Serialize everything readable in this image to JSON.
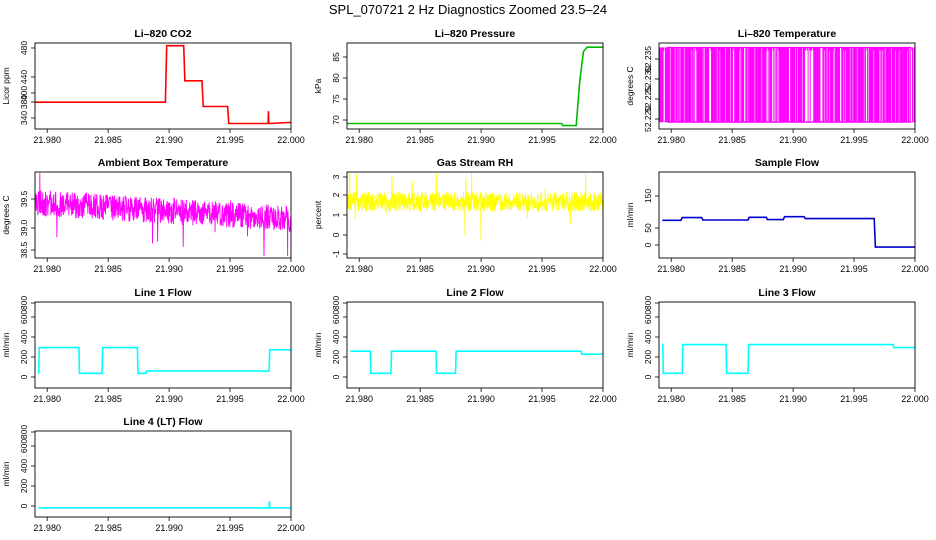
{
  "page": {
    "title": "SPL_070721  2 Hz Diagnostics Zoomed 23.5–24"
  },
  "chart_data": [
    {
      "type": "line",
      "title": "Li–820 CO2",
      "ylabel": "Licor ppm",
      "color": "#ff0000",
      "xlim": [
        21.979,
        22.0
      ],
      "ylim": [
        328,
        485
      ],
      "yticks": [
        "340",
        "380",
        "400",
        "440",
        "480"
      ],
      "xticks": [
        "21.980",
        "21.985",
        "21.990",
        "21.995",
        "22.000"
      ],
      "x": [
        21.979,
        21.9897,
        21.9898,
        21.9912,
        21.9913,
        21.9927,
        21.9928,
        21.9948,
        21.9949,
        21.99812,
        21.99815,
        21.99818,
        21.9982,
        22.0
      ],
      "y": [
        377,
        377,
        480,
        480,
        416,
        416,
        369,
        369,
        338,
        338,
        360,
        338,
        338,
        340
      ]
    },
    {
      "type": "line",
      "title": "Li–820 Pressure",
      "ylabel": "kPa",
      "color": "#00bb00",
      "xlim": [
        21.979,
        22.0
      ],
      "ylim": [
        68.5,
        89
      ],
      "yticks": [
        "70",
        "75",
        "80",
        "85"
      ],
      "xticks": [
        "21.980",
        "21.985",
        "21.990",
        "21.995",
        "22.000"
      ],
      "x": [
        21.979,
        21.9966,
        21.9967,
        21.9978,
        21.9981,
        21.9984,
        21.9987,
        22.0
      ],
      "y": [
        69.8,
        69.8,
        69.3,
        69.3,
        80,
        87,
        88,
        88
      ]
    },
    {
      "type": "line",
      "title": "Li–820 Temperature",
      "ylabel": "degrees C",
      "color": "#ff00ff",
      "xlim": [
        21.979,
        22.0
      ],
      "ylim": [
        52.218,
        52.247
      ],
      "yticks": [
        "52.220",
        "52.225",
        "52.230",
        "52.235"
      ],
      "xticks": [
        "21.980",
        "21.985",
        "21.990",
        "21.995",
        "22.000"
      ],
      "x": [
        21.979,
        22.0
      ],
      "y": [
        52.2203,
        52.2455
      ]
    },
    {
      "type": "line",
      "title": "Ambient Box Temperature",
      "ylabel": "degrees C",
      "color": "#ff00ff",
      "xlim": [
        21.979,
        22.0
      ],
      "ylim": [
        38.44,
        39.78
      ],
      "yticks": [
        "38.5",
        "39.0",
        "39.5"
      ],
      "xticks": [
        "21.980",
        "21.985",
        "21.990",
        "21.995",
        "22.000"
      ],
      "x": [
        21.979,
        22.0
      ],
      "y": [
        39.3,
        39.05
      ]
    },
    {
      "type": "line",
      "title": "Gas Stream RH",
      "ylabel": "percent",
      "color": "#ffff00",
      "xlim": [
        21.979,
        22.0
      ],
      "ylim": [
        -1.1,
        3.5
      ],
      "yticks": [
        "-1",
        "0",
        "1",
        "2",
        "3"
      ],
      "xticks": [
        "21.980",
        "21.985",
        "21.990",
        "21.995",
        "22.000"
      ],
      "x": [
        21.979,
        22.0
      ],
      "y": [
        1.9,
        1.9
      ]
    },
    {
      "type": "line",
      "title": "Sample Flow",
      "ylabel": "ml/min",
      "color": "#0000cc",
      "xlim": [
        21.979,
        22.0
      ],
      "ylim": [
        -30,
        230
      ],
      "yticks": [
        "0",
        "50",
        "150"
      ],
      "xticks": [
        "21.980",
        "21.985",
        "21.990",
        "21.995",
        "22.000"
      ],
      "x": [
        21.9793,
        21.9808,
        21.9809,
        21.9825,
        21.9826,
        21.9863,
        21.9864,
        21.9878,
        21.9879,
        21.9892,
        21.9893,
        21.9909,
        21.991,
        21.99665,
        21.99675,
        22.0
      ],
      "y": [
        84,
        84,
        92,
        92,
        85,
        85,
        93,
        93,
        86,
        86,
        95,
        95,
        89,
        89,
        3,
        3
      ]
    },
    {
      "type": "line",
      "title": "Line 1 Flow",
      "ylabel": "ml/min",
      "color": "#00ffff",
      "xlim": [
        21.979,
        22.0
      ],
      "ylim": [
        -120,
        1050
      ],
      "yticks": [
        "0",
        "200",
        "400",
        "600",
        "800"
      ],
      "xticks": [
        "21.980",
        "21.985",
        "21.990",
        "21.995",
        "22.000"
      ],
      "x": [
        21.9793,
        21.97935,
        21.9826,
        21.98265,
        21.9845,
        21.98455,
        21.9874,
        21.98745,
        21.98811,
        21.98815,
        21.9982,
        21.99825,
        22.0
      ],
      "y": [
        80,
        430,
        430,
        80,
        80,
        430,
        430,
        80,
        80,
        110,
        110,
        400,
        400
      ]
    },
    {
      "type": "line",
      "title": "Line 2 Flow",
      "ylabel": "ml/min",
      "color": "#00ffff",
      "xlim": [
        21.979,
        22.0
      ],
      "ylim": [
        -120,
        1050
      ],
      "yticks": [
        "0",
        "200",
        "400",
        "600",
        "800"
      ],
      "xticks": [
        "21.980",
        "21.985",
        "21.990",
        "21.995",
        "22.000"
      ],
      "x": [
        21.9793,
        21.9809,
        21.98095,
        21.9826,
        21.98265,
        21.9863,
        21.98635,
        21.9879,
        21.98795,
        21.9982,
        21.99825,
        22.0
      ],
      "y": [
        380,
        380,
        80,
        80,
        380,
        380,
        80,
        80,
        380,
        380,
        340,
        340
      ]
    },
    {
      "type": "line",
      "title": "Line 3 Flow",
      "ylabel": "ml/min",
      "color": "#00ffff",
      "xlim": [
        21.979,
        22.0
      ],
      "ylim": [
        -120,
        1050
      ],
      "yticks": [
        "0",
        "200",
        "400",
        "600",
        "800"
      ],
      "xticks": [
        "21.980",
        "21.985",
        "21.990",
        "21.995",
        "22.000"
      ],
      "x": [
        21.9793,
        21.97935,
        21.9809,
        21.98095,
        21.9845,
        21.98455,
        21.9863,
        21.98635,
        21.9982,
        21.99825,
        22.0
      ],
      "y": [
        480,
        80,
        80,
        470,
        470,
        80,
        80,
        470,
        470,
        430,
        430
      ]
    },
    {
      "type": "line",
      "title": "Line 4 (LT) Flow",
      "ylabel": "ml/min",
      "color": "#00ffff",
      "xlim": [
        21.979,
        22.0
      ],
      "ylim": [
        -120,
        1050
      ],
      "yticks": [
        "0",
        "200",
        "400",
        "600",
        "800"
      ],
      "xticks": [
        "21.980",
        "21.985",
        "21.990",
        "21.995",
        "22.000"
      ],
      "x": [
        21.9793,
        21.9982,
        21.99822,
        21.99825,
        21.9983,
        22.0
      ],
      "y": [
        5,
        5,
        90,
        5,
        5,
        5
      ]
    }
  ]
}
